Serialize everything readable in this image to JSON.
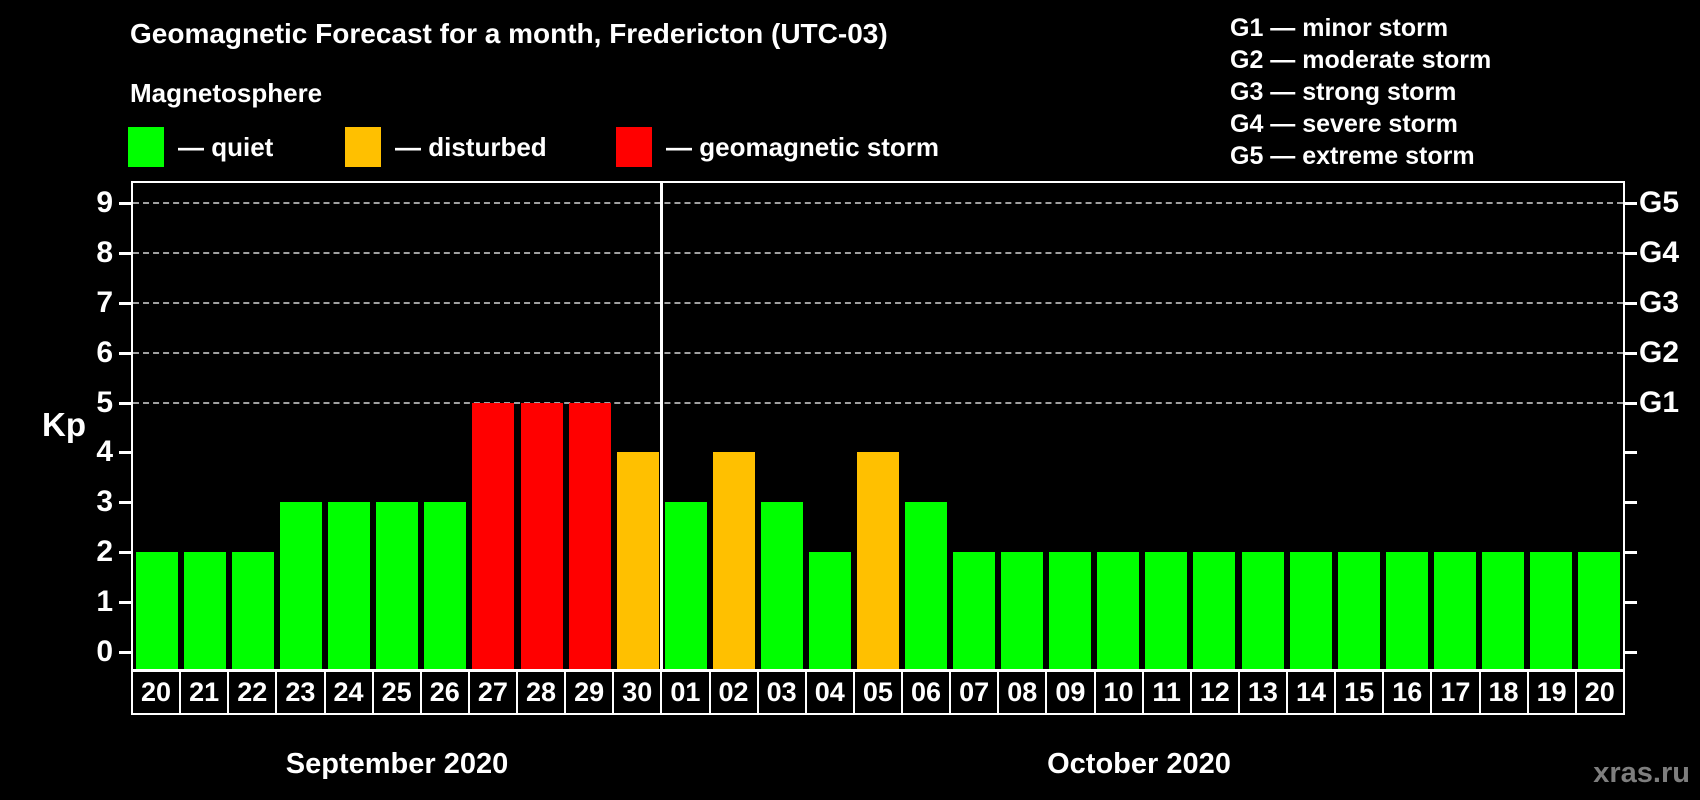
{
  "title": "Geomagnetic Forecast for a month, Fredericton (UTC-03)",
  "subtitle": "Magnetosphere",
  "legend": {
    "items": [
      {
        "key": "quiet",
        "label": "— quiet",
        "color": "#00ff00"
      },
      {
        "key": "disturbed",
        "label": "— disturbed",
        "color": "#ffc000"
      },
      {
        "key": "storm",
        "label": "— geomagnetic storm",
        "color": "#ff0000"
      }
    ]
  },
  "g_scale_legend": {
    "lines": [
      "G1 — minor storm",
      "G2 — moderate storm",
      "G3 — strong storm",
      "G4 — severe storm",
      "G5 — extreme storm"
    ]
  },
  "watermark": "xras.ru",
  "chart_data": {
    "type": "bar",
    "ylabel": "Kp",
    "ylim": [
      0,
      9
    ],
    "yticks": [
      0,
      1,
      2,
      3,
      4,
      5,
      6,
      7,
      8,
      9
    ],
    "grid_levels": [
      5,
      6,
      7,
      8,
      9
    ],
    "grid_style": "dashed",
    "right_axis_labels": [
      {
        "label": "G1",
        "kp": 5
      },
      {
        "label": "G2",
        "kp": 6
      },
      {
        "label": "G3",
        "kp": 7
      },
      {
        "label": "G4",
        "kp": 8
      },
      {
        "label": "G5",
        "kp": 9
      }
    ],
    "colors": {
      "quiet": "#00ff00",
      "disturbed": "#ffc000",
      "storm": "#ff0000"
    },
    "months": [
      {
        "label": "September 2020",
        "days": [
          "20",
          "21",
          "22",
          "23",
          "24",
          "25",
          "26",
          "27",
          "28",
          "29",
          "30"
        ]
      },
      {
        "label": "October 2020",
        "days": [
          "01",
          "02",
          "03",
          "04",
          "05",
          "06",
          "07",
          "08",
          "09",
          "10",
          "11",
          "12",
          "13",
          "14",
          "15",
          "16",
          "17",
          "18",
          "19",
          "20"
        ]
      }
    ],
    "bars": [
      {
        "month": "September 2020",
        "day": "20",
        "value": 2,
        "status": "quiet"
      },
      {
        "month": "September 2020",
        "day": "21",
        "value": 2,
        "status": "quiet"
      },
      {
        "month": "September 2020",
        "day": "22",
        "value": 2,
        "status": "quiet"
      },
      {
        "month": "September 2020",
        "day": "23",
        "value": 3,
        "status": "quiet"
      },
      {
        "month": "September 2020",
        "day": "24",
        "value": 3,
        "status": "quiet"
      },
      {
        "month": "September 2020",
        "day": "25",
        "value": 3,
        "status": "quiet"
      },
      {
        "month": "September 2020",
        "day": "26",
        "value": 3,
        "status": "quiet"
      },
      {
        "month": "September 2020",
        "day": "27",
        "value": 5,
        "status": "storm"
      },
      {
        "month": "September 2020",
        "day": "28",
        "value": 5,
        "status": "storm"
      },
      {
        "month": "September 2020",
        "day": "29",
        "value": 5,
        "status": "storm"
      },
      {
        "month": "September 2020",
        "day": "30",
        "value": 4,
        "status": "disturbed"
      },
      {
        "month": "October 2020",
        "day": "01",
        "value": 3,
        "status": "quiet"
      },
      {
        "month": "October 2020",
        "day": "02",
        "value": 4,
        "status": "disturbed"
      },
      {
        "month": "October 2020",
        "day": "03",
        "value": 3,
        "status": "quiet"
      },
      {
        "month": "October 2020",
        "day": "04",
        "value": 2,
        "status": "quiet"
      },
      {
        "month": "October 2020",
        "day": "05",
        "value": 4,
        "status": "disturbed"
      },
      {
        "month": "October 2020",
        "day": "06",
        "value": 3,
        "status": "quiet"
      },
      {
        "month": "October 2020",
        "day": "07",
        "value": 2,
        "status": "quiet"
      },
      {
        "month": "October 2020",
        "day": "08",
        "value": 2,
        "status": "quiet"
      },
      {
        "month": "October 2020",
        "day": "09",
        "value": 2,
        "status": "quiet"
      },
      {
        "month": "October 2020",
        "day": "10",
        "value": 2,
        "status": "quiet"
      },
      {
        "month": "October 2020",
        "day": "11",
        "value": 2,
        "status": "quiet"
      },
      {
        "month": "October 2020",
        "day": "12",
        "value": 2,
        "status": "quiet"
      },
      {
        "month": "October 2020",
        "day": "13",
        "value": 2,
        "status": "quiet"
      },
      {
        "month": "October 2020",
        "day": "14",
        "value": 2,
        "status": "quiet"
      },
      {
        "month": "October 2020",
        "day": "15",
        "value": 2,
        "status": "quiet"
      },
      {
        "month": "October 2020",
        "day": "16",
        "value": 2,
        "status": "quiet"
      },
      {
        "month": "October 2020",
        "day": "17",
        "value": 2,
        "status": "quiet"
      },
      {
        "month": "October 2020",
        "day": "18",
        "value": 2,
        "status": "quiet"
      },
      {
        "month": "October 2020",
        "day": "19",
        "value": 2,
        "status": "quiet"
      },
      {
        "month": "October 2020",
        "day": "20",
        "value": 2,
        "status": "quiet"
      }
    ]
  }
}
